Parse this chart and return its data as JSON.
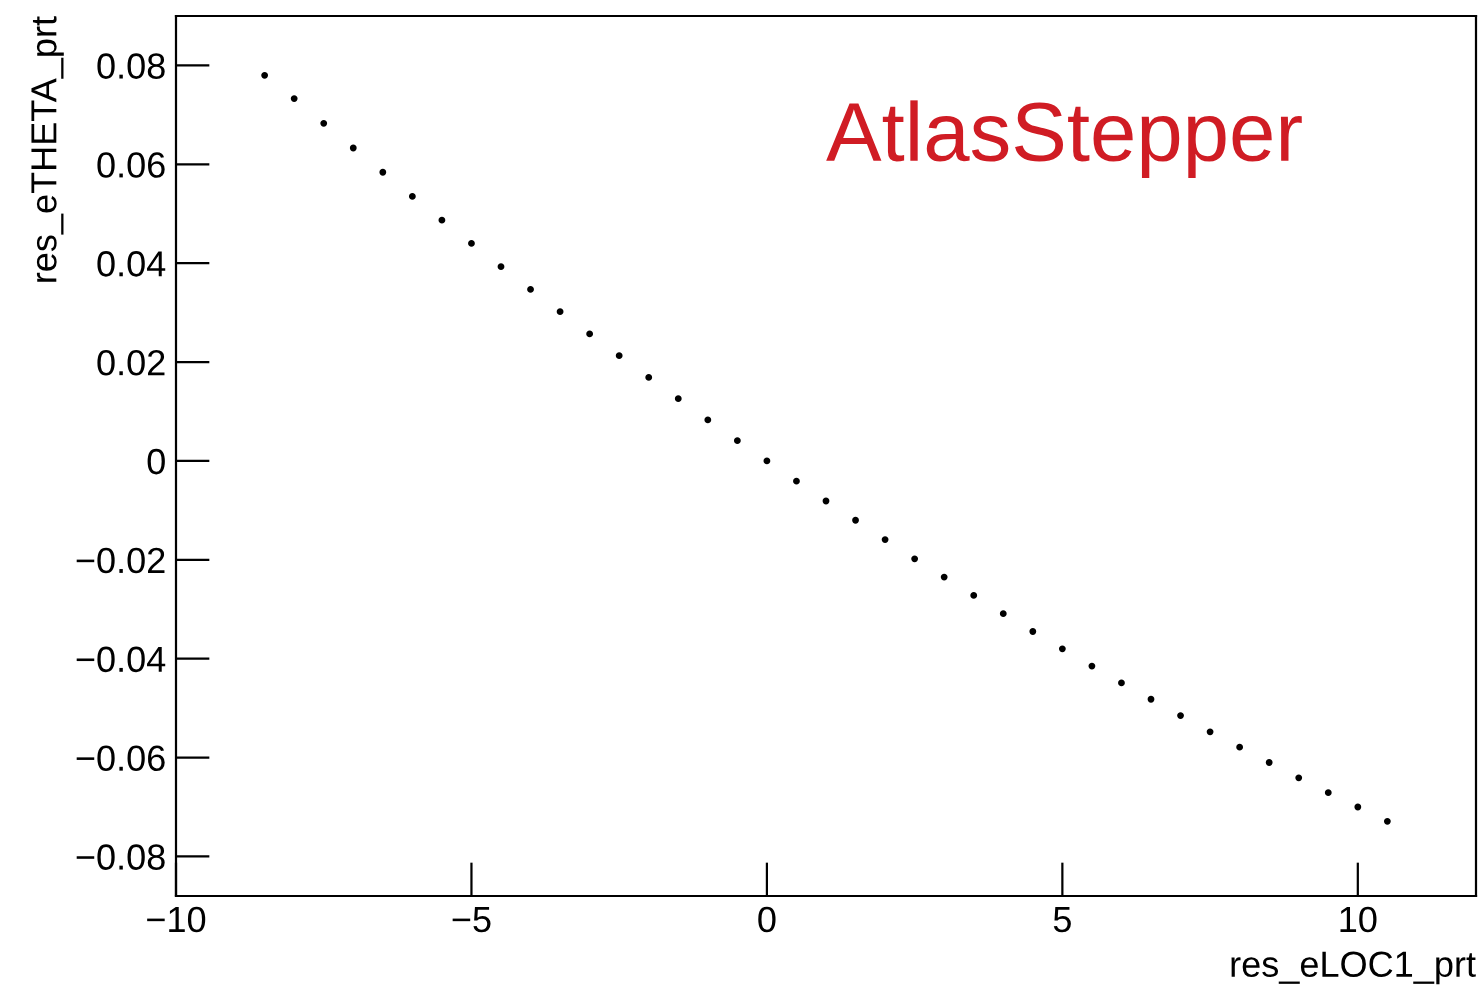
{
  "chart_data": {
    "type": "scatter",
    "xlabel": "res_eLOC1_prt",
    "ylabel": "res_eTHETA_prt",
    "annotations": [
      "AtlasStepper"
    ],
    "x": [
      -8.5,
      -8,
      -7.5,
      -7,
      -6.5,
      -6,
      -5.5,
      -5,
      -4.5,
      -4,
      -3.5,
      -3,
      -2.5,
      -2,
      -1.5,
      -1,
      -0.5,
      0,
      0.5,
      1,
      1.5,
      2,
      2.5,
      3,
      3.5,
      4,
      4.5,
      5,
      5.5,
      6,
      6.5,
      7,
      7.5,
      8,
      8.5,
      9,
      9.5,
      10,
      10.5
    ],
    "series": [
      {
        "color": "#000000",
        "values": [
          0.078,
          0.0733,
          0.0683,
          0.0633,
          0.0584,
          0.0535,
          0.0487,
          0.044,
          0.0393,
          0.0347,
          0.0302,
          0.0257,
          0.0213,
          0.0169,
          0.0126,
          0.0083,
          0.0041,
          0,
          -0.0041,
          -0.0081,
          -0.012,
          -0.0159,
          -0.0198,
          -0.0235,
          -0.0272,
          -0.0309,
          -0.0345,
          -0.038,
          -0.0415,
          -0.0449,
          -0.0482,
          -0.0515,
          -0.0548,
          -0.0579,
          -0.061,
          -0.0641,
          -0.0671,
          -0.07,
          -0.0729
        ]
      }
    ],
    "xlim": [
      -10,
      12
    ],
    "ylim": [
      -0.088,
      0.09
    ],
    "xticks": [
      {
        "value": -10,
        "label": "−10"
      },
      {
        "value": -5,
        "label": "−5"
      },
      0,
      5,
      10
    ],
    "yticks": [
      {
        "value": -0.08,
        "label": "−0.08"
      },
      {
        "value": -0.06,
        "label": "−0.06"
      },
      {
        "value": -0.04,
        "label": "−0.04"
      },
      {
        "value": -0.02,
        "label": "−0.02"
      },
      0,
      0.02,
      0.04,
      0.06,
      0.08
    ],
    "grid": false,
    "legend": false
  }
}
